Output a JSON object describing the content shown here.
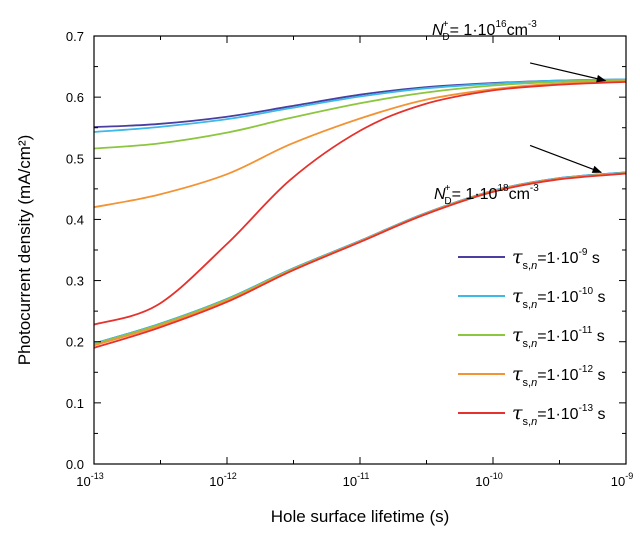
{
  "chart_data": {
    "type": "line",
    "xlabel": "Hole surface lifetime (s)",
    "ylabel": "Photocurrent density (mA/cm²)",
    "x_scale": "log",
    "xlim": [
      1e-13,
      1e-09
    ],
    "ylim": [
      0.0,
      0.7
    ],
    "grid": false,
    "legend_position": "right",
    "x_ticks": [
      {
        "value": 1e-13,
        "base": "10",
        "exp": "-13"
      },
      {
        "value": 1e-12,
        "base": "10",
        "exp": "-12"
      },
      {
        "value": 1e-11,
        "base": "10",
        "exp": "-11"
      },
      {
        "value": 1e-10,
        "base": "10",
        "exp": "-10"
      },
      {
        "value": 1e-09,
        "base": "10",
        "exp": "-9"
      }
    ],
    "y_ticks": [
      "0.0",
      "0.1",
      "0.2",
      "0.3",
      "0.4",
      "0.5",
      "0.6",
      "0.7"
    ],
    "x": [
      1e-13,
      3e-13,
      1e-12,
      3e-12,
      1e-11,
      3e-11,
      1e-10,
      3e-10,
      1e-09
    ],
    "series": [
      {
        "name": "τs,n=1·10-9 s",
        "label": {
          "base": "=1·10",
          "exp": "-9",
          "unit": " s"
        },
        "color": "#4a3fa0",
        "group": "N_D = 1e16",
        "values": [
          0.551,
          0.556,
          0.568,
          0.585,
          0.604,
          0.616,
          0.623,
          0.627,
          0.629
        ]
      },
      {
        "name": "τs,n=1·10-10 s",
        "label": {
          "base": "=1·10",
          "exp": "-10",
          "unit": " s"
        },
        "color": "#3db9e8",
        "group": "N_D = 1e16",
        "values": [
          0.543,
          0.551,
          0.564,
          0.582,
          0.601,
          0.614,
          0.622,
          0.627,
          0.629
        ]
      },
      {
        "name": "τs,n=1·10-11 s",
        "label": {
          "base": "=1·10",
          "exp": "-11",
          "unit": " s"
        },
        "color": "#8cc63e",
        "group": "N_D = 1e16",
        "values": [
          0.516,
          0.524,
          0.542,
          0.566,
          0.59,
          0.607,
          0.619,
          0.625,
          0.628
        ]
      },
      {
        "name": "τs,n=1·10-12 s",
        "label": {
          "base": "=1·10",
          "exp": "-12",
          "unit": " s"
        },
        "color": "#f39333",
        "group": "N_D = 1e16",
        "values": [
          0.42,
          0.44,
          0.474,
          0.523,
          0.565,
          0.595,
          0.613,
          0.622,
          0.626
        ]
      },
      {
        "name": "τs,n=1·10-13 s",
        "label": {
          "base": "=1·10",
          "exp": "-13",
          "unit": " s"
        },
        "color": "#e5322d",
        "group": "N_D = 1e16",
        "values": [
          0.228,
          0.26,
          0.36,
          0.465,
          0.545,
          0.588,
          0.611,
          0.62,
          0.625
        ]
      },
      {
        "name": "τs,n=1·10-9 s (N_D=1e18)",
        "color": "#4a3fa0",
        "group": "N_D = 1e18",
        "values": [
          0.197,
          0.228,
          0.27,
          0.318,
          0.365,
          0.409,
          0.447,
          0.467,
          0.477
        ]
      },
      {
        "name": "τs,n=1·10-10 s (N_D=1e18)",
        "color": "#3db9e8",
        "group": "N_D = 1e18",
        "values": [
          0.197,
          0.228,
          0.27,
          0.318,
          0.365,
          0.409,
          0.447,
          0.467,
          0.477
        ]
      },
      {
        "name": "τs,n=1·10-11 s (N_D=1e18)",
        "color": "#8cc63e",
        "group": "N_D = 1e18",
        "values": [
          0.196,
          0.227,
          0.269,
          0.317,
          0.364,
          0.408,
          0.446,
          0.466,
          0.476
        ]
      },
      {
        "name": "τs,n=1·10-12 s (N_D=1e18)",
        "color": "#f39333",
        "group": "N_D = 1e18",
        "values": [
          0.194,
          0.225,
          0.267,
          0.316,
          0.364,
          0.408,
          0.446,
          0.466,
          0.476
        ]
      },
      {
        "name": "τs,n=1·10-13 s (N_D=1e18)",
        "color": "#e5322d",
        "group": "N_D = 1e18",
        "values": [
          0.19,
          0.222,
          0.265,
          0.315,
          0.363,
          0.407,
          0.445,
          0.465,
          0.475
        ]
      }
    ],
    "annotations": [
      {
        "id": "nd16",
        "prefix": "N",
        "sub": "D",
        "sup": "+",
        "value": "= 1·10",
        "value_exp": "16",
        "unit": "cm",
        "unit_exp": "-3",
        "arrow_from": [
          1.9e-10,
          0.656
        ],
        "arrow_to": [
          7e-10,
          0.627
        ]
      },
      {
        "id": "nd18",
        "prefix": "N",
        "sub": "D",
        "sup": "+",
        "value": "= 1·10",
        "value_exp": "18",
        "unit": "cm",
        "unit_exp": "-3",
        "arrow_from": [
          1.9e-10,
          0.521
        ],
        "arrow_to": [
          6.5e-10,
          0.477
        ]
      }
    ]
  }
}
